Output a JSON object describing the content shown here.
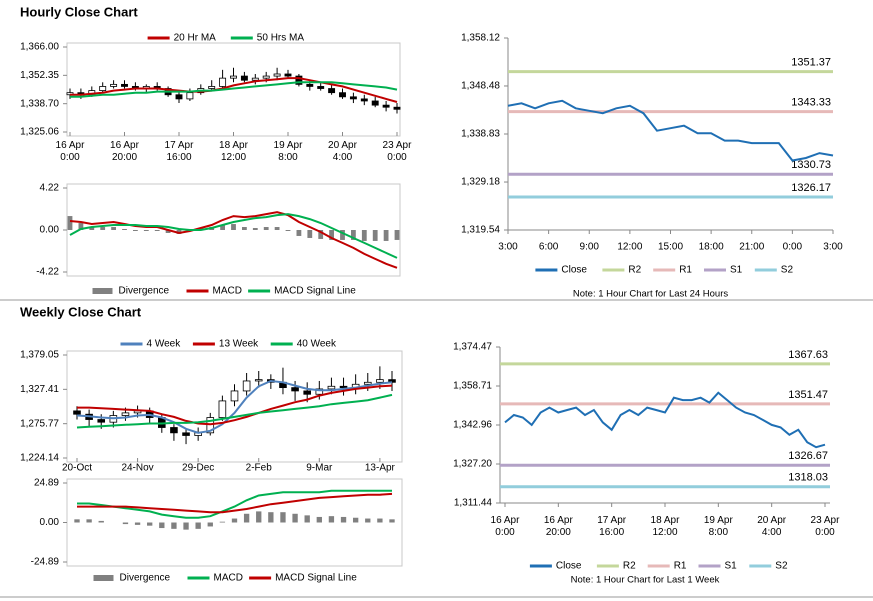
{
  "sections": [
    "Hourly Close Chart",
    "Weekly Close Chart"
  ],
  "chart_data": [
    {
      "type": "candlestick",
      "legend": "top",
      "ylim": [
        1325.06,
        1366.0
      ],
      "yticks": [
        {
          "value": 1366.0,
          "label": "1,366.00"
        },
        {
          "value": 1352.35,
          "label": "1,352.35"
        },
        {
          "value": 1338.7,
          "label": "1,338.70"
        },
        {
          "value": 1325.06,
          "label": "1,325.06"
        }
      ],
      "categories": [
        "16 Apr\n0:00",
        null,
        null,
        null,
        null,
        "16 Apr\n20:00",
        null,
        null,
        null,
        null,
        "17 Apr\n16:00",
        null,
        null,
        null,
        null,
        "18 Apr\n12:00",
        null,
        null,
        null,
        null,
        "19 Apr\n8:00",
        null,
        null,
        null,
        null,
        "20 Apr\n4:00",
        null,
        null,
        null,
        null,
        "23 Apr\n0:00"
      ],
      "open": [
        1343,
        1344,
        1343,
        1345,
        1347,
        1348,
        1347,
        1346,
        1347,
        1346,
        1343,
        1341,
        1344,
        1346,
        1347,
        1351,
        1352,
        1350,
        1351,
        1352,
        1353,
        1352,
        1348,
        1347,
        1346,
        1344,
        1342,
        1341,
        1340,
        1338,
        1337
      ],
      "high": [
        1346,
        1346,
        1347,
        1349,
        1350,
        1350,
        1349,
        1348,
        1349,
        1347,
        1345,
        1346,
        1348,
        1350,
        1355,
        1356,
        1354,
        1353,
        1354,
        1356,
        1355,
        1353,
        1350,
        1349,
        1348,
        1346,
        1344,
        1343,
        1342,
        1340,
        1339
      ],
      "low": [
        1341,
        1341,
        1342,
        1344,
        1346,
        1346,
        1345,
        1344,
        1345,
        1342,
        1339,
        1340,
        1343,
        1345,
        1346,
        1349,
        1349,
        1348,
        1349,
        1350,
        1351,
        1347,
        1345,
        1345,
        1343,
        1341,
        1339,
        1338,
        1337,
        1335,
        1334
      ],
      "close": [
        1344,
        1343,
        1345,
        1347,
        1348,
        1347,
        1346,
        1347,
        1346,
        1343,
        1341,
        1344,
        1346,
        1347,
        1351,
        1352,
        1350,
        1351,
        1352,
        1353,
        1352,
        1348,
        1347,
        1346,
        1344,
        1342,
        1341,
        1340,
        1338,
        1337,
        1336
      ],
      "series": [
        {
          "name": "20 Hr MA",
          "color": "#c00000",
          "values": [
            1343,
            1343,
            1343.5,
            1344,
            1345,
            1345.5,
            1346,
            1346,
            1346,
            1345.5,
            1345,
            1344.5,
            1344.5,
            1345,
            1346,
            1347.5,
            1348.5,
            1349.5,
            1350,
            1350.5,
            1351,
            1351,
            1350,
            1349,
            1348,
            1347,
            1345.5,
            1344,
            1342.5,
            1341,
            1339.5
          ]
        },
        {
          "name": "50 Hrs MA",
          "color": "#00b050",
          "values": [
            1342,
            1342,
            1342.5,
            1343,
            1343,
            1343.5,
            1344,
            1344,
            1344.5,
            1344.5,
            1344.5,
            1344.5,
            1345,
            1345,
            1345.5,
            1346,
            1346.5,
            1347,
            1347.5,
            1348,
            1348.5,
            1349,
            1349,
            1349,
            1349,
            1348.5,
            1348,
            1347.5,
            1347,
            1346.5,
            1345.5
          ]
        }
      ]
    },
    {
      "type": "combo",
      "legend": "bottom",
      "ylim": [
        -4.22,
        4.22
      ],
      "yticks": [
        4.22,
        {
          "value": 0,
          "label": "0.00"
        },
        -4.22
      ],
      "series": [
        {
          "name": "Divergence",
          "color": "#808080",
          "kind": "bar",
          "values": [
            1.4,
            0.7,
            0.3,
            0.3,
            0.3,
            0.1,
            -0.1,
            -0.1,
            -0.1,
            -0.3,
            -0.4,
            -0.1,
            0.2,
            0.3,
            0.5,
            0.6,
            0.3,
            0.2,
            0.3,
            0.3,
            -0.1,
            -0.6,
            -0.8,
            -0.9,
            -1.0,
            -1.0,
            -1.0,
            -1.1,
            -1.1,
            -1.1,
            -1.0
          ]
        },
        {
          "name": "MACD",
          "color": "#c00000",
          "kind": "line",
          "values": [
            0.9,
            0.8,
            0.6,
            0.7,
            0.8,
            0.6,
            0.4,
            0.3,
            0.3,
            0,
            -0.3,
            -0.1,
            0.2,
            0.5,
            1,
            1.4,
            1.3,
            1.4,
            1.6,
            1.8,
            1.5,
            0.8,
            0.3,
            -0.2,
            -0.8,
            -1.3,
            -1.8,
            -2.4,
            -2.9,
            -3.4,
            -3.8
          ]
        },
        {
          "name": "MACD Signal Line",
          "color": "#00b050",
          "kind": "line",
          "values": [
            -0.5,
            0.1,
            0.3,
            0.4,
            0.5,
            0.5,
            0.5,
            0.4,
            0.4,
            0.3,
            0.1,
            0,
            0,
            0.2,
            0.5,
            0.8,
            1,
            1.2,
            1.3,
            1.5,
            1.6,
            1.4,
            1.1,
            0.7,
            0.2,
            -0.3,
            -0.8,
            -1.3,
            -1.8,
            -2.3,
            -2.8
          ]
        }
      ]
    },
    {
      "type": "line",
      "legend": "bottom",
      "ylim": [
        1319.54,
        1358.12
      ],
      "yticks": [
        {
          "value": 1358.12,
          "label": "1,358.12"
        },
        {
          "value": 1348.48,
          "label": "1,348.48"
        },
        {
          "value": 1338.83,
          "label": "1,338.83"
        },
        {
          "value": 1329.18,
          "label": "1,329.18"
        },
        {
          "value": 1319.54,
          "label": "1,319.54"
        }
      ],
      "categories": [
        "3:00",
        null,
        null,
        "6:00",
        null,
        null,
        "9:00",
        null,
        null,
        "12:00",
        null,
        null,
        "15:00",
        null,
        null,
        "18:00",
        null,
        null,
        "21:00",
        null,
        null,
        "0:00",
        null,
        null,
        "3:00"
      ],
      "series": [
        {
          "name": "Close",
          "color": "#1f6fb4",
          "values": [
            1344.5,
            1345,
            1344,
            1345,
            1345.5,
            1344,
            1343.5,
            1343,
            1344,
            1344.5,
            1343,
            1339.5,
            1340,
            1340.5,
            1339,
            1339,
            1337.5,
            1337.5,
            1337,
            1337,
            1337,
            1333.5,
            1334,
            1335,
            1334.5
          ]
        }
      ],
      "levels": [
        {
          "name": "R2",
          "color": "#c4d79b",
          "value": 1351.37
        },
        {
          "name": "R1",
          "color": "#e6b9b8",
          "value": 1343.33
        },
        {
          "name": "S1",
          "color": "#b3a2c7",
          "value": 1330.73
        },
        {
          "name": "S2",
          "color": "#92cddc",
          "value": 1326.17
        }
      ],
      "note": "Note: 1 Hour Chart for Last 24 Hours"
    },
    {
      "type": "candlestick",
      "legend": "top",
      "ylim": [
        1224.14,
        1379.05
      ],
      "yticks": [
        {
          "value": 1379.05,
          "label": "1,379.05"
        },
        {
          "value": 1327.41,
          "label": "1,327.41"
        },
        {
          "value": 1275.77,
          "label": "1,275.77"
        },
        {
          "value": 1224.14,
          "label": "1,224.14"
        }
      ],
      "categories": [
        "20-Oct",
        null,
        null,
        null,
        null,
        "24-Nov",
        null,
        null,
        null,
        null,
        "29-Dec",
        null,
        null,
        null,
        null,
        "2-Feb",
        null,
        null,
        null,
        null,
        "9-Mar",
        null,
        null,
        null,
        null,
        "13-Apr",
        null
      ],
      "open": [
        1295,
        1290,
        1282,
        1278,
        1288,
        1292,
        1295,
        1285,
        1270,
        1262,
        1258,
        1262,
        1285,
        1310,
        1325,
        1340,
        1342,
        1338,
        1330,
        1325,
        1320,
        1328,
        1332,
        1330,
        1335,
        1338,
        1342
      ],
      "high": [
        1302,
        1297,
        1290,
        1295,
        1300,
        1303,
        1300,
        1290,
        1275,
        1268,
        1270,
        1292,
        1318,
        1335,
        1352,
        1355,
        1350,
        1360,
        1340,
        1338,
        1340,
        1345,
        1345,
        1350,
        1352,
        1362,
        1355
      ],
      "low": [
        1282,
        1272,
        1268,
        1270,
        1280,
        1285,
        1275,
        1262,
        1250,
        1245,
        1250,
        1258,
        1280,
        1302,
        1318,
        1330,
        1328,
        1320,
        1310,
        1308,
        1312,
        1320,
        1318,
        1320,
        1325,
        1328,
        1325
      ],
      "close": [
        1290,
        1282,
        1278,
        1288,
        1292,
        1295,
        1285,
        1270,
        1262,
        1258,
        1262,
        1285,
        1310,
        1325,
        1340,
        1342,
        1338,
        1330,
        1325,
        1320,
        1328,
        1332,
        1330,
        1335,
        1338,
        1342,
        1338
      ],
      "series": [
        {
          "name": "4 Week",
          "color": "#4f81bd",
          "values": [
            1288,
            1287,
            1285,
            1284,
            1285,
            1288,
            1289,
            1285,
            1278,
            1268,
            1262,
            1265,
            1275,
            1292,
            1315,
            1332,
            1340,
            1338,
            1333,
            1328,
            1326,
            1326,
            1328,
            1330,
            1333,
            1336,
            1338
          ]
        },
        {
          "name": "13 Week",
          "color": "#c00000",
          "values": [
            1300,
            1300,
            1299,
            1298,
            1297,
            1296,
            1295,
            1290,
            1286,
            1280,
            1276,
            1275,
            1277,
            1281,
            1286,
            1292,
            1298,
            1303,
            1308,
            1312,
            1318,
            1322,
            1325,
            1328,
            1330,
            1332,
            1333
          ]
        },
        {
          "name": "40 Week",
          "color": "#00b050",
          "values": [
            1270,
            1271,
            1272,
            1273,
            1274,
            1275,
            1276,
            1276,
            1277,
            1277,
            1278,
            1280,
            1283,
            1286,
            1289,
            1292,
            1294,
            1296,
            1298,
            1300,
            1302,
            1305,
            1307,
            1309,
            1311,
            1315,
            1319
          ]
        }
      ]
    },
    {
      "type": "combo",
      "legend": "bottom",
      "ylim": [
        -24.89,
        24.89
      ],
      "yticks": [
        24.89,
        {
          "value": 0,
          "label": "0.00"
        },
        -24.89
      ],
      "series": [
        {
          "name": "Divergence",
          "color": "#808080",
          "kind": "bar",
          "values": [
            2,
            2,
            1,
            0,
            -1,
            -1.5,
            -2,
            -3.5,
            -4,
            -4.5,
            -4,
            -2.5,
            0.5,
            2.5,
            5.5,
            7,
            6.5,
            6.5,
            5.5,
            4.5,
            3.5,
            4,
            3.5,
            3,
            2.5,
            2.5,
            2
          ]
        },
        {
          "name": "MACD",
          "color": "#00b050",
          "kind": "line",
          "values": [
            12,
            12,
            11,
            10,
            9,
            8,
            7,
            5,
            4,
            3,
            3,
            4,
            7,
            10,
            14,
            17,
            18,
            19,
            19,
            19,
            19,
            20,
            20,
            20,
            20,
            20,
            20
          ]
        },
        {
          "name": "MACD Signal Line",
          "color": "#c00000",
          "kind": "line",
          "values": [
            10,
            10,
            10,
            10,
            10,
            9.5,
            9,
            8.5,
            8,
            7.5,
            7,
            6.5,
            6.5,
            7.5,
            8.5,
            10,
            11.5,
            12.5,
            13.5,
            14.5,
            15.5,
            16,
            16.5,
            17,
            17.5,
            17.5,
            18
          ]
        }
      ]
    },
    {
      "type": "line",
      "legend": "bottom",
      "ylim": [
        1311.44,
        1374.47
      ],
      "yticks": [
        {
          "value": 1374.47,
          "label": "1,374.47"
        },
        {
          "value": 1358.71,
          "label": "1,358.71"
        },
        {
          "value": 1342.96,
          "label": "1,342.96"
        },
        {
          "value": 1327.2,
          "label": "1,327.20"
        },
        {
          "value": 1311.44,
          "label": "1,311.44"
        }
      ],
      "categories": [
        "16 Apr\n0:00",
        null,
        null,
        null,
        null,
        null,
        "16 Apr\n20:00",
        null,
        null,
        null,
        null,
        null,
        "17 Apr\n16:00",
        null,
        null,
        null,
        null,
        null,
        "18 Apr\n12:00",
        null,
        null,
        null,
        null,
        null,
        "19 Apr\n8:00",
        null,
        null,
        null,
        null,
        null,
        "20 Apr\n4:00",
        null,
        null,
        null,
        null,
        null,
        "23 Apr\n0:00"
      ],
      "series": [
        {
          "name": "Close",
          "color": "#1f6fb4",
          "values": [
            1344,
            1347,
            1346,
            1343,
            1348,
            1350,
            1348,
            1349,
            1350,
            1347,
            1349,
            1344,
            1341,
            1347,
            1349,
            1347,
            1350,
            1349,
            1348,
            1354,
            1353,
            1353,
            1354,
            1352,
            1356,
            1353,
            1350,
            1348,
            1347,
            1345,
            1343,
            1342,
            1339,
            1341,
            1336,
            1334,
            1335
          ]
        }
      ],
      "levels": [
        {
          "name": "R2",
          "color": "#c4d79b",
          "value": 1367.63
        },
        {
          "name": "R1",
          "color": "#e6b9b8",
          "value": 1351.47
        },
        {
          "name": "S1",
          "color": "#b3a2c7",
          "value": 1326.67
        },
        {
          "name": "S2",
          "color": "#92cddc",
          "value": 1318.03
        }
      ],
      "note": "Note: 1 Hour Chart for Last 1 Week"
    }
  ]
}
